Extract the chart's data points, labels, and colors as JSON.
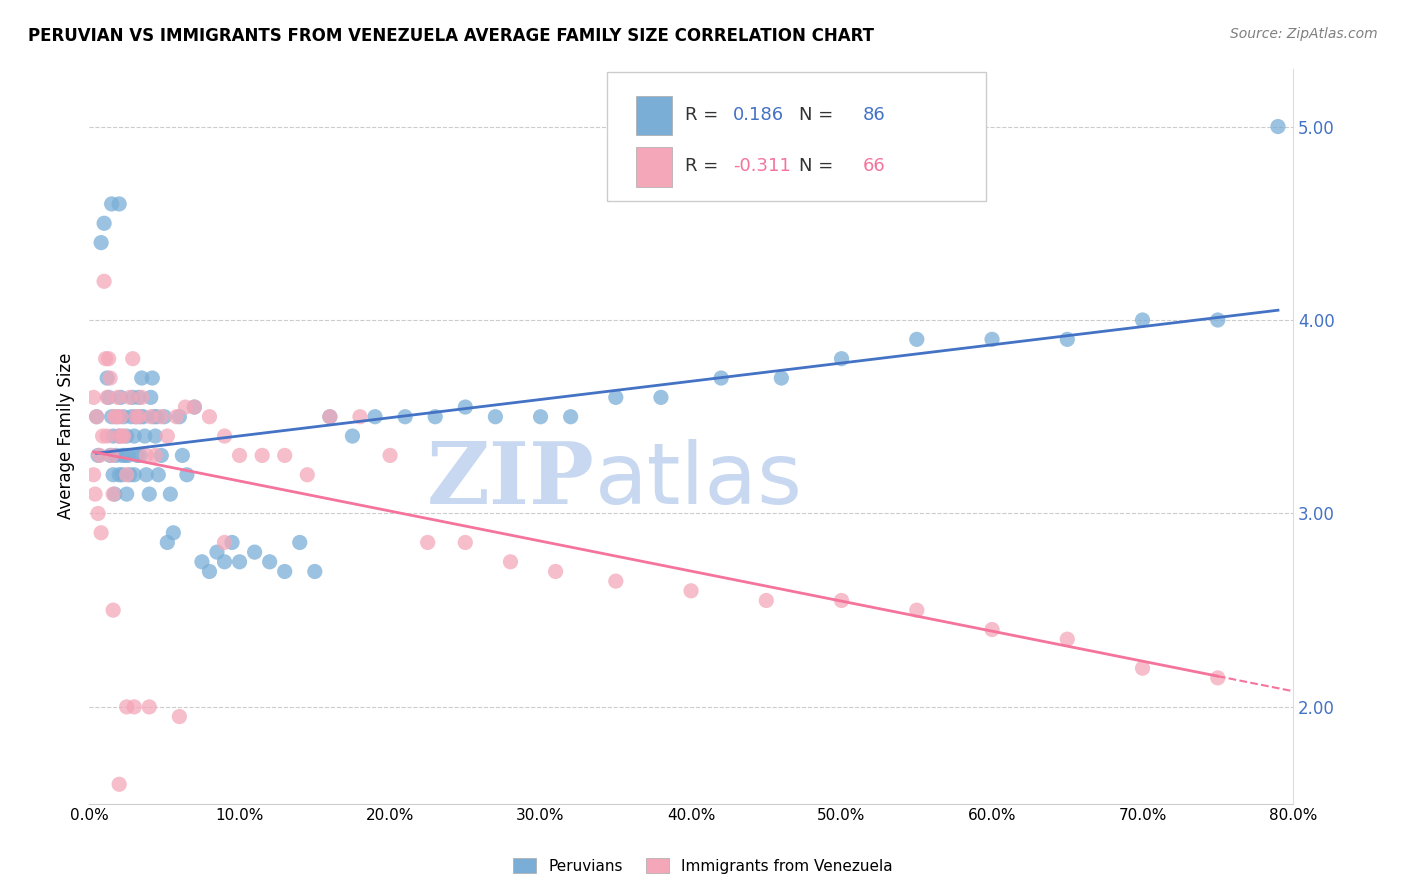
{
  "title": "PERUVIAN VS IMMIGRANTS FROM VENEZUELA AVERAGE FAMILY SIZE CORRELATION CHART",
  "source": "Source: ZipAtlas.com",
  "ylabel": "Average Family Size",
  "yticks": [
    2.0,
    3.0,
    4.0,
    5.0
  ],
  "blue_R": 0.186,
  "blue_N": 86,
  "pink_R": -0.311,
  "pink_N": 66,
  "blue_color": "#7aaed6",
  "pink_color": "#f4a7b9",
  "blue_line_color": "#4472c4",
  "pink_line_color": "#f4749c",
  "watermark_zip": "ZIP",
  "watermark_atlas": "atlas",
  "watermark_color": "#c8d8f0",
  "blue_scatter_x": [
    0.005,
    0.006,
    0.008,
    0.01,
    0.012,
    0.013,
    0.014,
    0.015,
    0.016,
    0.016,
    0.017,
    0.018,
    0.019,
    0.02,
    0.02,
    0.021,
    0.022,
    0.022,
    0.023,
    0.024,
    0.025,
    0.025,
    0.026,
    0.027,
    0.028,
    0.029,
    0.03,
    0.03,
    0.031,
    0.032,
    0.033,
    0.034,
    0.034,
    0.035,
    0.036,
    0.037,
    0.038,
    0.04,
    0.041,
    0.042,
    0.043,
    0.044,
    0.045,
    0.046,
    0.048,
    0.05,
    0.052,
    0.054,
    0.056,
    0.06,
    0.062,
    0.065,
    0.07,
    0.075,
    0.08,
    0.085,
    0.09,
    0.095,
    0.1,
    0.11,
    0.12,
    0.13,
    0.14,
    0.15,
    0.16,
    0.175,
    0.19,
    0.21,
    0.23,
    0.25,
    0.27,
    0.3,
    0.32,
    0.35,
    0.38,
    0.42,
    0.46,
    0.5,
    0.55,
    0.6,
    0.65,
    0.7,
    0.75,
    0.79,
    0.015,
    0.02
  ],
  "blue_scatter_y": [
    3.5,
    3.3,
    4.4,
    4.5,
    3.7,
    3.6,
    3.3,
    3.5,
    3.4,
    3.2,
    3.1,
    3.3,
    3.5,
    3.4,
    3.2,
    3.6,
    3.2,
    3.3,
    3.5,
    3.3,
    3.4,
    3.1,
    3.3,
    3.2,
    3.5,
    3.6,
    3.4,
    3.2,
    3.5,
    3.3,
    3.6,
    3.5,
    3.3,
    3.7,
    3.5,
    3.4,
    3.2,
    3.1,
    3.6,
    3.7,
    3.5,
    3.4,
    3.5,
    3.2,
    3.3,
    3.5,
    2.85,
    3.1,
    2.9,
    3.5,
    3.3,
    3.2,
    3.55,
    2.75,
    2.7,
    2.8,
    2.75,
    2.85,
    2.75,
    2.8,
    2.75,
    2.7,
    2.85,
    2.7,
    3.5,
    3.4,
    3.5,
    3.5,
    3.5,
    3.55,
    3.5,
    3.5,
    3.5,
    3.6,
    3.6,
    3.7,
    3.7,
    3.8,
    3.9,
    3.9,
    3.9,
    4.0,
    4.0,
    5.0,
    4.6,
    4.6
  ],
  "pink_scatter_x": [
    0.003,
    0.005,
    0.007,
    0.009,
    0.01,
    0.011,
    0.012,
    0.013,
    0.014,
    0.015,
    0.016,
    0.017,
    0.018,
    0.019,
    0.02,
    0.021,
    0.022,
    0.023,
    0.025,
    0.027,
    0.029,
    0.031,
    0.033,
    0.035,
    0.038,
    0.041,
    0.044,
    0.048,
    0.052,
    0.058,
    0.064,
    0.07,
    0.08,
    0.09,
    0.1,
    0.115,
    0.13,
    0.145,
    0.16,
    0.18,
    0.2,
    0.225,
    0.25,
    0.28,
    0.31,
    0.35,
    0.4,
    0.45,
    0.5,
    0.55,
    0.6,
    0.65,
    0.7,
    0.75,
    0.003,
    0.004,
    0.006,
    0.008,
    0.012,
    0.016,
    0.02,
    0.025,
    0.03,
    0.04,
    0.06,
    0.09
  ],
  "pink_scatter_y": [
    3.6,
    3.5,
    3.3,
    3.4,
    4.2,
    3.8,
    3.6,
    3.8,
    3.7,
    3.3,
    3.1,
    3.5,
    3.5,
    3.6,
    3.4,
    3.5,
    3.4,
    3.4,
    3.2,
    3.6,
    3.8,
    3.5,
    3.5,
    3.6,
    3.3,
    3.5,
    3.3,
    3.5,
    3.4,
    3.5,
    3.55,
    3.55,
    3.5,
    3.4,
    3.3,
    3.3,
    3.3,
    3.2,
    3.5,
    3.5,
    3.3,
    2.85,
    2.85,
    2.75,
    2.7,
    2.65,
    2.6,
    2.55,
    2.55,
    2.5,
    2.4,
    2.35,
    2.2,
    2.15,
    3.2,
    3.1,
    3.0,
    2.9,
    3.4,
    2.5,
    1.6,
    2.0,
    2.0,
    2.0,
    1.95,
    2.85
  ]
}
